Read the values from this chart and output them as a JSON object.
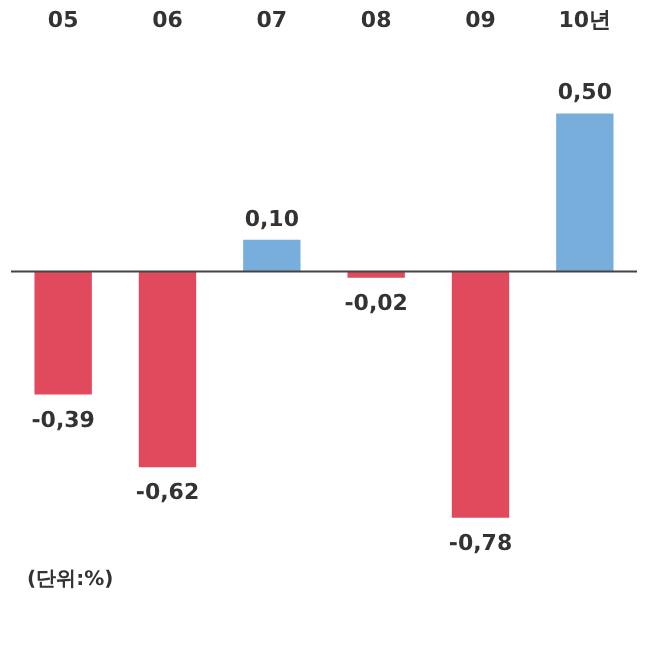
{
  "chart_data": {
    "type": "bar",
    "categories": [
      "05",
      "06",
      "07",
      "08",
      "09",
      "10년"
    ],
    "values": [
      -0.39,
      -0.62,
      0.1,
      -0.02,
      -0.78,
      0.5
    ],
    "colors": [
      "#e04a5c",
      "#e04a5c",
      "#78aedc",
      "#e04a5c",
      "#e04a5c",
      "#78aedc"
    ],
    "value_labels": [
      "-0,39",
      "-0,62",
      "0,10",
      "-0,02",
      "-0,78",
      "0,50"
    ],
    "annotations": [
      "(단위:%)"
    ]
  }
}
